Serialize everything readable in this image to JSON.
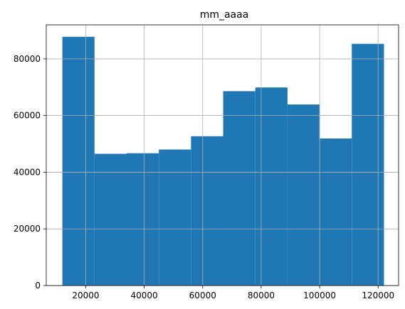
{
  "chart_data": {
    "type": "bar",
    "title": "mm_aaaa",
    "xlabel": "",
    "ylabel": "",
    "xlim": [
      6500,
      127000
    ],
    "ylim": [
      0,
      92000
    ],
    "grid": true,
    "colors": {
      "bar": "#1f77b4",
      "grid": "#b0b0b0"
    },
    "bins": [
      {
        "x0": 12000,
        "x1": 23000,
        "count": 87800
      },
      {
        "x0": 23000,
        "x1": 34000,
        "count": 46500
      },
      {
        "x0": 34000,
        "x1": 45000,
        "count": 46700
      },
      {
        "x0": 45000,
        "x1": 56000,
        "count": 48000
      },
      {
        "x0": 56000,
        "x1": 67000,
        "count": 52700
      },
      {
        "x0": 67000,
        "x1": 78000,
        "count": 68600
      },
      {
        "x0": 78000,
        "x1": 89000,
        "count": 69900
      },
      {
        "x0": 89000,
        "x1": 100000,
        "count": 63900
      },
      {
        "x0": 100000,
        "x1": 111000,
        "count": 51900
      },
      {
        "x0": 111000,
        "x1": 122000,
        "count": 85300
      }
    ],
    "xticks": [
      {
        "value": 20000,
        "label": "20000"
      },
      {
        "value": 40000,
        "label": "40000"
      },
      {
        "value": 60000,
        "label": "60000"
      },
      {
        "value": 80000,
        "label": "80000"
      },
      {
        "value": 100000,
        "label": "100000"
      },
      {
        "value": 120000,
        "label": "120000"
      }
    ],
    "yticks": [
      {
        "value": 0,
        "label": "0"
      },
      {
        "value": 20000,
        "label": "20000"
      },
      {
        "value": 40000,
        "label": "40000"
      },
      {
        "value": 60000,
        "label": "60000"
      },
      {
        "value": 80000,
        "label": "80000"
      }
    ]
  }
}
